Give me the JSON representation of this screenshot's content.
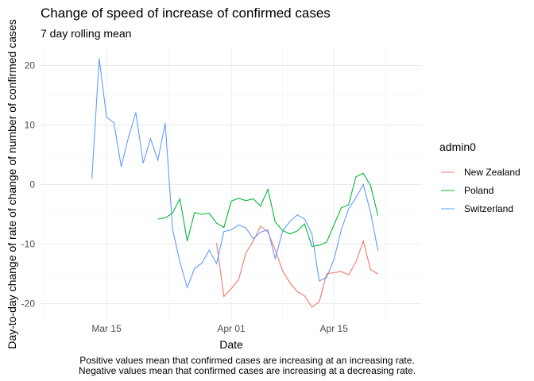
{
  "chart_data": {
    "type": "line",
    "title": "Change of speed of increase of confirmed cases",
    "subtitle": "7 day rolling mean",
    "xlabel": "Date",
    "ylabel": "Day-to-day change of rate of change of number of confirmed cases",
    "caption": [
      "Positive values mean that confirmed cases are increasing at an increasing rate.",
      "Negative values mean that confirmed cases are increasing at a decreasing rate."
    ],
    "x_ticks": [
      "Mar 15",
      "Apr 01",
      "Apr 15"
    ],
    "x_tick_dates": [
      "2020-03-15",
      "2020-04-01",
      "2020-04-15"
    ],
    "y_ticks": [
      20,
      10,
      0,
      -10,
      -20
    ],
    "xlim": [
      "2020-03-06",
      "2020-04-27"
    ],
    "ylim": [
      -23,
      23
    ],
    "grid": true,
    "legend": {
      "title": "admin0",
      "position": "right"
    },
    "series": [
      {
        "name": "New Zealand",
        "color": "#F8766D",
        "points": [
          [
            "2020-03-30",
            -9.8
          ],
          [
            "2020-03-31",
            -18.8
          ],
          [
            "2020-04-01",
            -17.5
          ],
          [
            "2020-04-02",
            -16
          ],
          [
            "2020-04-03",
            -11.5
          ],
          [
            "2020-04-04",
            -9.5
          ],
          [
            "2020-04-05",
            -7
          ],
          [
            "2020-04-06",
            -8
          ],
          [
            "2020-04-07",
            -11
          ],
          [
            "2020-04-08",
            -14.5
          ],
          [
            "2020-04-09",
            -16.5
          ],
          [
            "2020-04-10",
            -18
          ],
          [
            "2020-04-11",
            -18.7
          ],
          [
            "2020-04-12",
            -20.6
          ],
          [
            "2020-04-13",
            -19.7
          ],
          [
            "2020-04-14",
            -15
          ],
          [
            "2020-04-15",
            -14.8
          ],
          [
            "2020-04-16",
            -14.6
          ],
          [
            "2020-04-17",
            -15.2
          ],
          [
            "2020-04-18",
            -13
          ],
          [
            "2020-04-19",
            -9.5
          ],
          [
            "2020-04-20",
            -14.3
          ],
          [
            "2020-04-21",
            -15
          ]
        ]
      },
      {
        "name": "Poland",
        "color": "#00BA38",
        "points": [
          [
            "2020-03-22",
            -5.8
          ],
          [
            "2020-03-23",
            -5.6
          ],
          [
            "2020-03-24",
            -4.8
          ],
          [
            "2020-03-25",
            -2.4
          ],
          [
            "2020-03-26",
            -9.5
          ],
          [
            "2020-03-27",
            -4.7
          ],
          [
            "2020-03-28",
            -5
          ],
          [
            "2020-03-29",
            -4.8
          ],
          [
            "2020-03-30",
            -6.5
          ],
          [
            "2020-03-31",
            -7.2
          ],
          [
            "2020-04-01",
            -2.8
          ],
          [
            "2020-04-02",
            -2.3
          ],
          [
            "2020-04-03",
            -2.7
          ],
          [
            "2020-04-04",
            -2.4
          ],
          [
            "2020-04-05",
            -3.6
          ],
          [
            "2020-04-06",
            -0.8
          ],
          [
            "2020-04-07",
            -6.3
          ],
          [
            "2020-04-08",
            -7.7
          ],
          [
            "2020-04-09",
            -8.3
          ],
          [
            "2020-04-10",
            -7.8
          ],
          [
            "2020-04-11",
            -6.6
          ],
          [
            "2020-04-12",
            -10.4
          ],
          [
            "2020-04-13",
            -10.2
          ],
          [
            "2020-04-14",
            -9.7
          ],
          [
            "2020-04-15",
            -6.8
          ],
          [
            "2020-04-16",
            -3.9
          ],
          [
            "2020-04-17",
            -3.4
          ],
          [
            "2020-04-18",
            1.3
          ],
          [
            "2020-04-19",
            1.9
          ],
          [
            "2020-04-20",
            -0.2
          ],
          [
            "2020-04-21",
            -5.2
          ]
        ]
      },
      {
        "name": "Switzerland",
        "color": "#619CFF",
        "points": [
          [
            "2020-03-13",
            1
          ],
          [
            "2020-03-14",
            21.2
          ],
          [
            "2020-03-15",
            11.3
          ],
          [
            "2020-03-16",
            10.4
          ],
          [
            "2020-03-17",
            3
          ],
          [
            "2020-03-18",
            8
          ],
          [
            "2020-03-19",
            12.1
          ],
          [
            "2020-03-20",
            3.6
          ],
          [
            "2020-03-21",
            7.7
          ],
          [
            "2020-03-22",
            4.1
          ],
          [
            "2020-03-23",
            10.3
          ],
          [
            "2020-03-24",
            -7.5
          ],
          [
            "2020-03-25",
            -13
          ],
          [
            "2020-03-26",
            -17.3
          ],
          [
            "2020-03-27",
            -14.1
          ],
          [
            "2020-03-28",
            -13.2
          ],
          [
            "2020-03-29",
            -11
          ],
          [
            "2020-03-30",
            -13.3
          ],
          [
            "2020-03-31",
            -7.9
          ],
          [
            "2020-04-01",
            -7.6
          ],
          [
            "2020-04-02",
            -6.8
          ],
          [
            "2020-04-03",
            -7.3
          ],
          [
            "2020-04-04",
            -9.1
          ],
          [
            "2020-04-05",
            -8
          ],
          [
            "2020-04-06",
            -7.6
          ],
          [
            "2020-04-07",
            -12.5
          ],
          [
            "2020-04-08",
            -7.8
          ],
          [
            "2020-04-09",
            -6.2
          ],
          [
            "2020-04-10",
            -5.1
          ],
          [
            "2020-04-11",
            -5.8
          ],
          [
            "2020-04-12",
            -8.3
          ],
          [
            "2020-04-13",
            -16.2
          ],
          [
            "2020-04-14",
            -15.6
          ],
          [
            "2020-04-15",
            -12.6
          ],
          [
            "2020-04-16",
            -7.6
          ],
          [
            "2020-04-17",
            -4.1
          ],
          [
            "2020-04-18",
            -2.2
          ],
          [
            "2020-04-19",
            0
          ],
          [
            "2020-04-20",
            -4.7
          ],
          [
            "2020-04-21",
            -11.1
          ]
        ]
      }
    ]
  }
}
